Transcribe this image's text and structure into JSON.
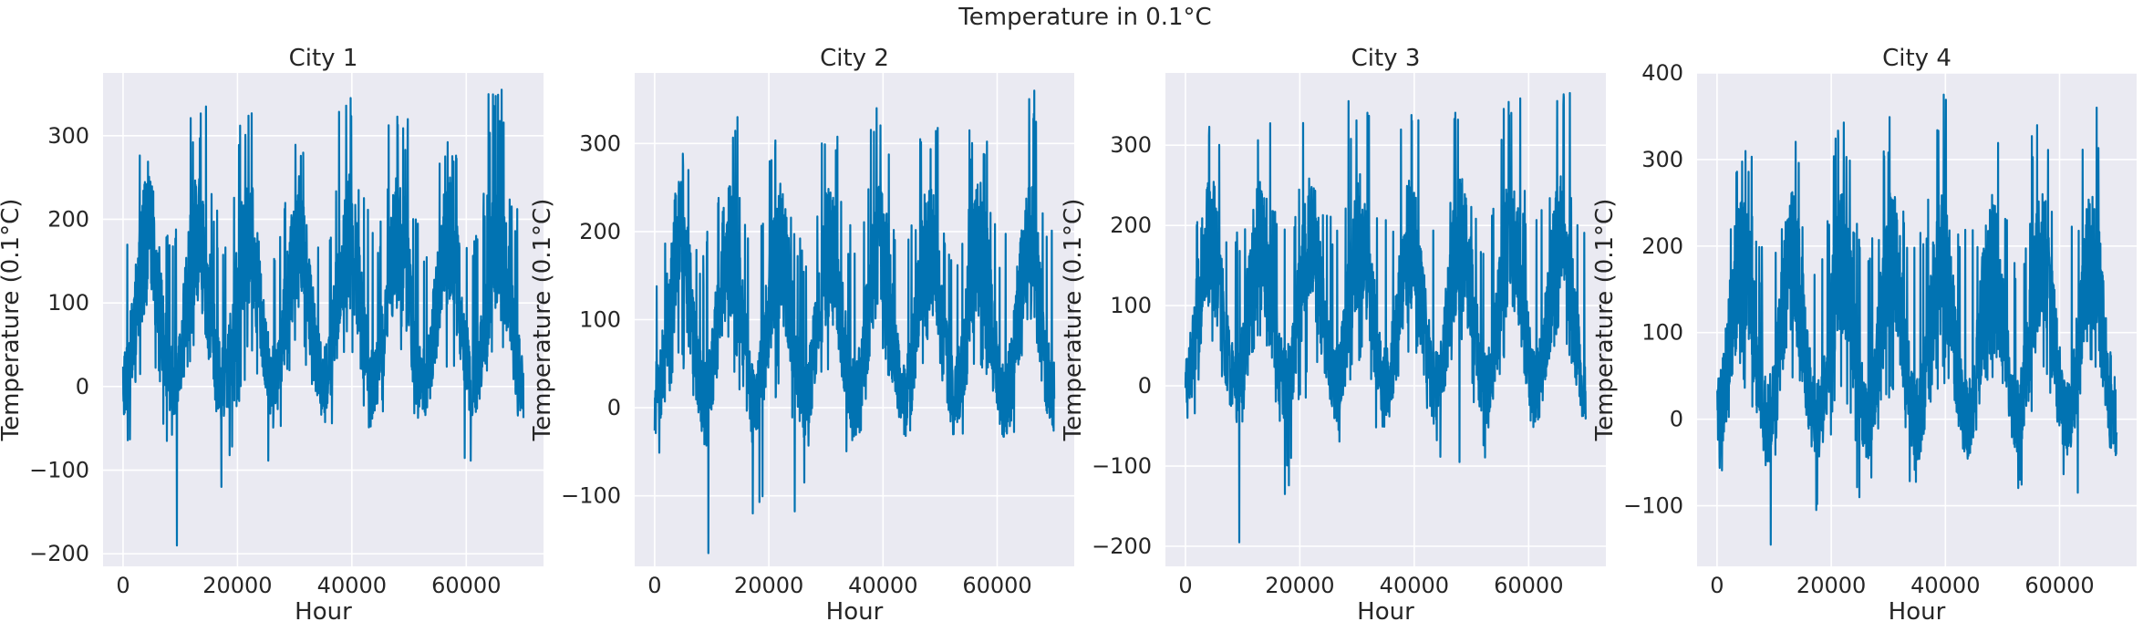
{
  "figure": {
    "suptitle": "Temperature in 0.1°C"
  },
  "style": {
    "background": "#eaeaf2",
    "grid": "#ffffff",
    "series_color": "#0173b2"
  },
  "chart_data": [
    {
      "type": "line",
      "title": "City 1",
      "xlabel": "Hour",
      "ylabel": "Temperature (0.1°C)",
      "xlim": [
        -3500,
        73500
      ],
      "ylim": [
        -215,
        375
      ],
      "xticks": [
        0,
        20000,
        40000,
        60000
      ],
      "xtick_labels": [
        "0",
        "20000",
        "40000",
        "60000"
      ],
      "yticks": [
        -200,
        -100,
        0,
        100,
        200,
        300
      ],
      "ytick_labels": [
        "−200",
        "−100",
        "0",
        "100",
        "200",
        "300"
      ],
      "grid": true,
      "legend": "none",
      "series": [
        {
          "x_range": [
            0,
            70000
          ],
          "n_years": 8,
          "base_mean": 90,
          "amplitude": 85,
          "noise_span": 160,
          "peaks": [
            300,
            335,
            330,
            310,
            345,
            325,
            300,
            355
          ],
          "troughs": [
            -70,
            -40,
            -120,
            -60,
            -50,
            -40,
            -90,
            -40
          ],
          "spikes": [
            {
              "x": 9400,
              "y": -190
            },
            {
              "x": 14500,
              "y": 335
            },
            {
              "x": 17200,
              "y": -120
            },
            {
              "x": 39800,
              "y": 345
            },
            {
              "x": 66200,
              "y": 355
            }
          ]
        }
      ]
    },
    {
      "type": "line",
      "title": "City 2",
      "xlabel": "Hour",
      "ylabel": "Temperature (0.1°C)",
      "xlim": [
        -3500,
        73500
      ],
      "ylim": [
        -180,
        380
      ],
      "xticks": [
        0,
        20000,
        40000,
        60000
      ],
      "xtick_labels": [
        "0",
        "20000",
        "40000",
        "60000"
      ],
      "yticks": [
        -100,
        0,
        100,
        200,
        300
      ],
      "ytick_labels": [
        "−100",
        "0",
        "100",
        "200",
        "300"
      ],
      "grid": true,
      "legend": "none",
      "series": [
        {
          "x_range": [
            0,
            70000
          ],
          "n_years": 8,
          "base_mean": 95,
          "amplitude": 85,
          "noise_span": 160,
          "peaks": [
            290,
            330,
            325,
            335,
            340,
            320,
            320,
            360
          ],
          "troughs": [
            -55,
            -50,
            -120,
            -50,
            -40,
            -40,
            -50,
            -30
          ],
          "spikes": [
            {
              "x": 9400,
              "y": -165
            },
            {
              "x": 14500,
              "y": 330
            },
            {
              "x": 17200,
              "y": -120
            },
            {
              "x": 38900,
              "y": 340
            },
            {
              "x": 66500,
              "y": 360
            }
          ]
        }
      ]
    },
    {
      "type": "line",
      "title": "City 3",
      "xlabel": "Hour",
      "ylabel": "Temperature (0.1°C)",
      "xlim": [
        -3500,
        73500
      ],
      "ylim": [
        -225,
        390
      ],
      "xticks": [
        0,
        20000,
        40000,
        60000
      ],
      "xtick_labels": [
        "0",
        "20000",
        "40000",
        "60000"
      ],
      "yticks": [
        -200,
        -100,
        0,
        100,
        200,
        300
      ],
      "ytick_labels": [
        "−200",
        "−100",
        "0",
        "100",
        "200",
        "300"
      ],
      "grid": true,
      "legend": "none",
      "series": [
        {
          "x_range": [
            0,
            70000
          ],
          "n_years": 8,
          "base_mean": 90,
          "amplitude": 90,
          "noise_span": 170,
          "peaks": [
            330,
            345,
            360,
            355,
            345,
            350,
            360,
            365
          ],
          "troughs": [
            -55,
            -50,
            -135,
            -70,
            -50,
            -95,
            -55,
            -35
          ],
          "spikes": [
            {
              "x": 9400,
              "y": -195
            },
            {
              "x": 17400,
              "y": -135
            },
            {
              "x": 28500,
              "y": 355
            },
            {
              "x": 47900,
              "y": -95
            },
            {
              "x": 67200,
              "y": 365
            }
          ]
        }
      ]
    },
    {
      "type": "line",
      "title": "City 4",
      "xlabel": "Hour",
      "ylabel": "Temperature (0.1°C)",
      "xlim": [
        -3500,
        73500
      ],
      "ylim": [
        -170,
        400
      ],
      "xticks": [
        0,
        20000,
        40000,
        60000
      ],
      "xtick_labels": [
        "0",
        "20000",
        "40000",
        "60000"
      ],
      "yticks": [
        -100,
        0,
        100,
        200,
        300,
        400
      ],
      "ytick_labels": [
        "−100",
        "0",
        "100",
        "200",
        "300",
        "400"
      ],
      "grid": true,
      "legend": "none",
      "series": [
        {
          "x_range": [
            0,
            70000
          ],
          "n_years": 8,
          "base_mean": 90,
          "amplitude": 90,
          "noise_span": 170,
          "peaks": [
            320,
            335,
            345,
            350,
            375,
            355,
            340,
            360
          ],
          "troughs": [
            -60,
            -50,
            -105,
            -75,
            -60,
            -40,
            -85,
            -40
          ],
          "spikes": [
            {
              "x": 9400,
              "y": -145
            },
            {
              "x": 17400,
              "y": -105
            },
            {
              "x": 39700,
              "y": 375
            },
            {
              "x": 63200,
              "y": -85
            },
            {
              "x": 66500,
              "y": 360
            }
          ]
        }
      ]
    }
  ]
}
